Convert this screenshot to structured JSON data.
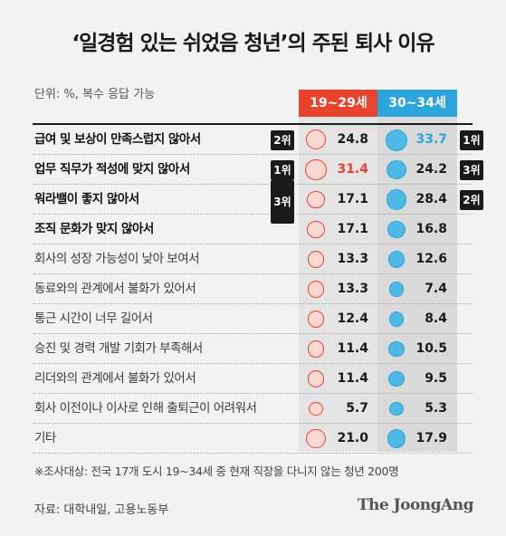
{
  "title": "‘일경험 있는 쉬었음 청년’의 주된 퇴사 이유",
  "unit_note": "단위: %, 복수 응답 가능",
  "footnote": "※조사대상: 전국 17개 도시 19~34세 중 현재 직장을 다니지 않는 청년 200명",
  "source": "자료: 대학내일, 고용노동부",
  "brand": "The JoongAng",
  "colors": {
    "young": "#e8442d",
    "old": "#2ba5dc",
    "rank": "#1a1a1a"
  },
  "chart_data": {
    "type": "table",
    "title": "‘일경험 있는 쉬었음 청년’의 주된 퇴사 이유",
    "unit": "%",
    "series": [
      {
        "name": "19~29세",
        "values": [
          24.8,
          31.4,
          17.1,
          17.1,
          13.3,
          13.3,
          12.4,
          11.4,
          11.4,
          5.7,
          21.0
        ]
      },
      {
        "name": "30~34세",
        "values": [
          33.7,
          24.2,
          28.4,
          16.8,
          12.6,
          7.4,
          8.4,
          10.5,
          9.5,
          5.3,
          17.9
        ]
      }
    ],
    "display": {
      "young": [
        "24.8",
        "31.4",
        "17.1",
        "17.1",
        "13.3",
        "13.3",
        "12.4",
        "11.4",
        "11.4",
        "5.7",
        "21.0"
      ],
      "old": [
        "33.7",
        "24.2",
        "28.4",
        "16.8",
        "12.6",
        "7.4",
        "8.4",
        "10.5",
        "9.5",
        "5.3",
        "17.9"
      ]
    },
    "categories": [
      "급여 및 보상이 만족스럽지 않아서",
      "업무 직무가 적성에 맞지 않아서",
      "워라밸이 좋지 않아서",
      "조직 문화가 맞지 않아서",
      "회사의 성장 가능성이 낮아 보여서",
      "동료와의 관계에서 불화가 있어서",
      "통근 시간이 너무 길어서",
      "승진 및 경력 개발 기회가 부족해서",
      "리더와의 관계에서 불화가 있어서",
      "회사 이전이나 이사로 인해 출퇴근이 어려워서",
      "기타"
    ],
    "ranks": {
      "young": [
        {
          "label": "1위",
          "rows": [
            1
          ]
        },
        {
          "label": "2위",
          "rows": [
            0
          ]
        },
        {
          "label": "3위",
          "rows": [
            2,
            3
          ]
        }
      ],
      "old": [
        {
          "label": "1위",
          "rows": [
            0
          ]
        },
        {
          "label": "2위",
          "rows": [
            2
          ]
        },
        {
          "label": "3위",
          "rows": [
            1
          ]
        }
      ]
    },
    "highlight": {
      "young": 1,
      "old": 0
    },
    "bold_rows": [
      0,
      1,
      2,
      3
    ]
  }
}
